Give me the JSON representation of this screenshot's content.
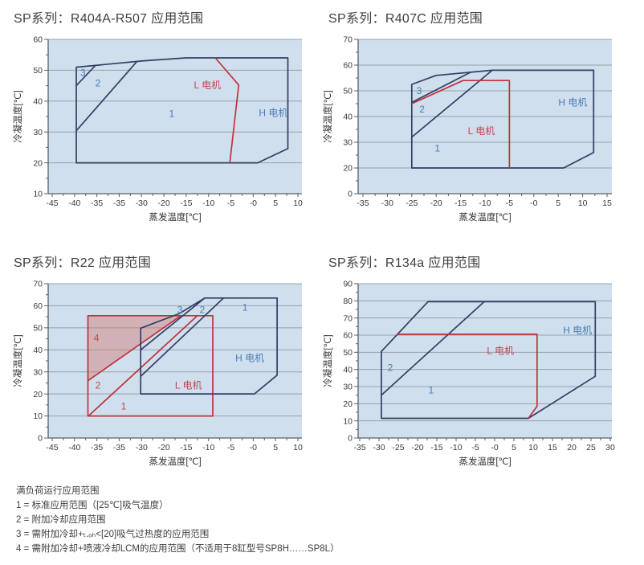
{
  "colors": {
    "plot_bg": "#cfdfee",
    "grid": "#99a0a9",
    "axis": "#5a5f66",
    "navy_line": "#333e63",
    "red_line": "#c0323a",
    "pink_fill": "rgba(213,115,105,0.42)",
    "blue_text": "#4a7cb2",
    "red_text": "#c4454e",
    "title_text": "#3f3f3f"
  },
  "footer": {
    "lines": [
      "满负荷运行应用范围",
      "1 = 标准应用范围（[25℃]吸气温度）",
      "2 = 附加冷却应用范围",
      "3 = 需附加冷却+ₜ.ₒₕ<[20]吸气过热度的应用范围",
      "4 = 需附加冷却+喷液冷却LCM的应用范围（不适用于8缸型号SP8H……SP8L）"
    ]
  },
  "chart_data": [
    {
      "type": "line",
      "title": "SP系列：R404A-R507 应用范围",
      "x_axis_label": "蒸发温度[℃]",
      "y_axis_label": "冷凝温度[℃]",
      "x_ticks": [
        "-45",
        "-40",
        "-35",
        "-35",
        "-30",
        "-20",
        "-15",
        "-10",
        "-5",
        "-0",
        "5",
        "10"
      ],
      "y_rows": [
        60,
        50,
        40,
        30,
        20,
        10
      ],
      "x_inset": 5,
      "shapes": [
        {
          "name": "h-motor-envelope",
          "color": "navy",
          "closed": true,
          "points": [
            [
              1.08,
              51
            ],
            [
              4,
              53
            ],
            [
              6,
              54
            ],
            [
              10.55,
              54
            ],
            [
              10.55,
              24.6
            ],
            [
              9.2,
              20
            ],
            [
              1.08,
              20
            ]
          ]
        },
        {
          "name": "zone2-boundary",
          "color": "navy",
          "closed": false,
          "points": [
            [
              1.08,
              30.4
            ],
            [
              3.8,
              52.9
            ]
          ]
        },
        {
          "name": "zone3-boundary",
          "color": "navy",
          "closed": false,
          "points": [
            [
              1.08,
              45
            ],
            [
              1.94,
              51.6
            ]
          ]
        },
        {
          "name": "l-motor-boundary",
          "color": "red",
          "closed": false,
          "points": [
            [
              7.3,
              54
            ],
            [
              8.35,
              45.2
            ],
            [
              7.95,
              20
            ]
          ]
        }
      ],
      "labels": [
        {
          "x": 1.38,
          "y": 49.2,
          "text": "3",
          "color": "blue"
        },
        {
          "x": 2.05,
          "y": 45.8,
          "text": "2",
          "color": "blue"
        },
        {
          "x": 5.35,
          "y": 36.0,
          "text": "1",
          "color": "blue"
        },
        {
          "x": 6.95,
          "y": 45.2,
          "text": "L 电机",
          "color": "red"
        },
        {
          "x": 9.9,
          "y": 36.2,
          "text": "H 电机",
          "color": "blue"
        }
      ]
    },
    {
      "type": "line",
      "title": "SP系列：R407C 应用范围",
      "x_axis_label": "蒸发温度[℃]",
      "y_axis_label": "冷凝温度[℃]",
      "x_ticks": [
        "-35",
        "-30",
        "-25",
        "-20",
        "-15",
        "-10",
        "-5",
        "-0",
        "5",
        "10",
        "15"
      ],
      "y_rows": [
        70,
        60,
        50,
        40,
        30,
        20,
        0
      ],
      "x_inset": 6,
      "shapes": [
        {
          "name": "h-motor-envelope",
          "color": "navy",
          "closed": true,
          "points": [
            [
              2,
              20
            ],
            [
              2,
              52.5
            ],
            [
              3,
              56
            ],
            [
              5.3,
              58
            ],
            [
              9.45,
              58
            ],
            [
              9.45,
              26
            ],
            [
              8.22,
              20
            ]
          ]
        },
        {
          "name": "zone1-boundary",
          "color": "navy",
          "closed": false,
          "points": [
            [
              2,
              32
            ],
            [
              5.3,
              58
            ]
          ]
        },
        {
          "name": "zone3-boundary",
          "color": "navy",
          "closed": false,
          "points": [
            [
              2,
              45.5
            ],
            [
              4.4,
              57.2
            ]
          ]
        },
        {
          "name": "l-motor-boundary",
          "color": "red",
          "closed": false,
          "points": [
            [
              2,
              45
            ],
            [
              4.1,
              54
            ],
            [
              6,
              54
            ],
            [
              6,
              20
            ]
          ]
        }
      ],
      "labels": [
        {
          "x": 2.3,
          "y": 50.0,
          "text": "3",
          "color": "blue"
        },
        {
          "x": 2.42,
          "y": 42.8,
          "text": "2",
          "color": "blue"
        },
        {
          "x": 3.05,
          "y": 27.7,
          "text": "1",
          "color": "blue"
        },
        {
          "x": 4.85,
          "y": 34.5,
          "text": "L 电机",
          "color": "red"
        },
        {
          "x": 8.6,
          "y": 45.5,
          "text": "H 电机",
          "color": "blue"
        }
      ]
    },
    {
      "type": "line",
      "title": "SP系列：R22 应用范围",
      "x_axis_label": "蒸发温度[℃]",
      "y_axis_label": "冷凝温度[℃]",
      "x_ticks": [
        "-45",
        "-40",
        "-35",
        "-35",
        "-30",
        "-20",
        "-15",
        "-10",
        "-5",
        "-0",
        "5",
        "10"
      ],
      "y_rows": [
        70,
        60,
        50,
        40,
        30,
        20,
        10,
        0
      ],
      "x_inset": 5,
      "shapes": [
        {
          "name": "zone4-region",
          "color": "red",
          "fill": true,
          "closed": true,
          "points": [
            [
              1.6,
              26
            ],
            [
              1.6,
              55.5
            ],
            [
              5.76,
              55.5
            ]
          ]
        },
        {
          "name": "l-motor-envelope",
          "color": "red",
          "closed": true,
          "points": [
            [
              1.6,
              10
            ],
            [
              1.6,
              55.5
            ],
            [
              7.19,
              55.5
            ],
            [
              7.19,
              10
            ]
          ]
        },
        {
          "name": "zone4-boundary",
          "color": "red",
          "closed": false,
          "points": [
            [
              1.6,
              26
            ],
            [
              5.76,
              55.5
            ]
          ]
        },
        {
          "name": "zone2-red-boundary",
          "color": "red",
          "closed": false,
          "points": [
            [
              1.62,
              10
            ],
            [
              6.5,
              55.5
            ]
          ]
        },
        {
          "name": "h-motor-envelope",
          "color": "navy",
          "closed": true,
          "points": [
            [
              3.96,
              20
            ],
            [
              3.96,
              49.8
            ],
            [
              5.7,
              56.5
            ],
            [
              6.83,
              63.5
            ],
            [
              10.07,
              63.5
            ],
            [
              10.07,
              28.5
            ],
            [
              9.05,
              20
            ]
          ]
        },
        {
          "name": "zone3-boundary",
          "color": "navy",
          "closed": false,
          "points": [
            [
              3.96,
              40
            ],
            [
              6.83,
              63.5
            ]
          ]
        },
        {
          "name": "zone2-boundary",
          "color": "navy",
          "closed": false,
          "points": [
            [
              3.96,
              28
            ],
            [
              7.67,
              63.5
            ]
          ]
        }
      ],
      "labels": [
        {
          "x": 1.98,
          "y": 45.5,
          "text": "4",
          "color": "red"
        },
        {
          "x": 2.05,
          "y": 24.0,
          "text": "2",
          "color": "red"
        },
        {
          "x": 3.2,
          "y": 14.5,
          "text": "1",
          "color": "red"
        },
        {
          "x": 6.1,
          "y": 24.0,
          "text": "L 电机",
          "color": "red"
        },
        {
          "x": 5.72,
          "y": 58.3,
          "text": "3",
          "color": "blue"
        },
        {
          "x": 6.72,
          "y": 58.3,
          "text": "2",
          "color": "blue"
        },
        {
          "x": 8.63,
          "y": 59.3,
          "text": "1",
          "color": "blue"
        },
        {
          "x": 8.85,
          "y": 36.4,
          "text": "H 电机",
          "color": "blue"
        }
      ]
    },
    {
      "type": "line",
      "title": "SP系列：R134a 应用范围",
      "x_axis_label": "蒸发温度[℃]",
      "y_axis_label": "冷凝温度[℃]",
      "x_ticks": [
        "-35",
        "-30",
        "-25",
        "-20",
        "-15",
        "-10",
        "-5",
        "-0",
        "5",
        "10",
        "15",
        "20",
        "25",
        "30"
      ],
      "y_rows": [
        90,
        80,
        70,
        60,
        50,
        40,
        30,
        20,
        10,
        0
      ],
      "x_inset": 2,
      "shapes": [
        {
          "name": "h-motor-envelope",
          "color": "navy",
          "closed": true,
          "points": [
            [
              1.12,
              50.5
            ],
            [
              3.54,
              79.5
            ],
            [
              12.22,
              79.5
            ],
            [
              12.22,
              36
            ],
            [
              8.75,
              11.5
            ],
            [
              1.12,
              11.5
            ]
          ]
        },
        {
          "name": "zone2-boundary",
          "color": "navy",
          "closed": false,
          "points": [
            [
              1.12,
              25
            ],
            [
              6.46,
              79.5
            ]
          ]
        },
        {
          "name": "l-motor-boundary",
          "color": "red",
          "closed": false,
          "points": [
            [
              1.93,
              60.5
            ],
            [
              9.2,
              60.5
            ],
            [
              9.2,
              18.5
            ],
            [
              8.75,
              11.5
            ]
          ]
        }
      ],
      "labels": [
        {
          "x": 1.58,
          "y": 41.0,
          "text": "2",
          "color": "blue"
        },
        {
          "x": 3.7,
          "y": 28.0,
          "text": "1",
          "color": "blue"
        },
        {
          "x": 7.3,
          "y": 51.0,
          "text": "L 电机",
          "color": "red"
        },
        {
          "x": 11.3,
          "y": 63.0,
          "text": "H 电机",
          "color": "blue"
        }
      ]
    }
  ]
}
